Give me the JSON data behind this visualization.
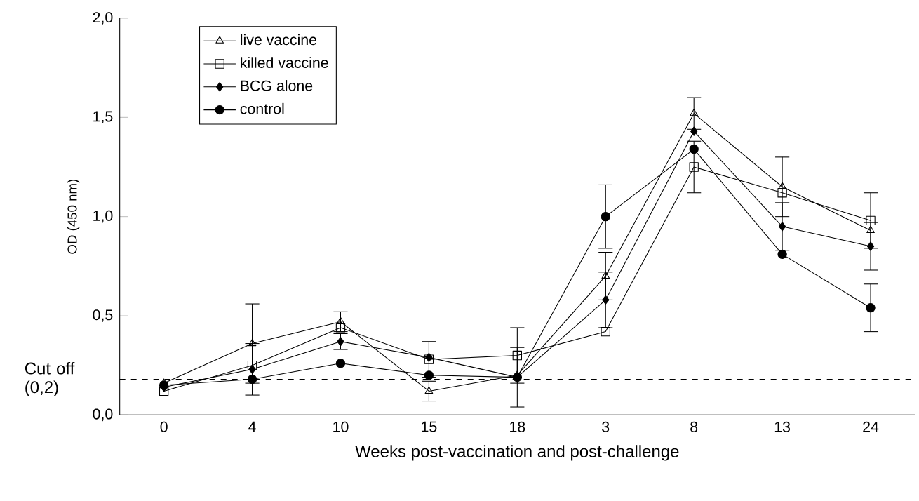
{
  "chart_data": {
    "type": "line",
    "xlabel": "Weeks post-vaccination and post-challenge",
    "ylabel": "OD (450 nm)",
    "categories": [
      "0",
      "4",
      "10",
      "15",
      "18",
      "3",
      "8",
      "13",
      "24"
    ],
    "series": [
      {
        "name": "live vaccine",
        "color": "#000000",
        "marker": "triangle",
        "values": [
          0.16,
          0.36,
          0.47,
          0.12,
          0.2,
          0.7,
          1.52,
          1.15,
          0.93
        ],
        "errors": [
          null,
          0.2,
          0.05,
          0.05,
          null,
          0.12,
          0.08,
          0.15,
          null
        ]
      },
      {
        "name": "killed vaccine",
        "color": "#000000",
        "marker": "square",
        "values": [
          0.12,
          0.25,
          0.44,
          0.28,
          0.3,
          0.42,
          1.25,
          1.12,
          0.98
        ],
        "errors": [
          null,
          null,
          null,
          0.09,
          0.14,
          null,
          0.13,
          null,
          0.14
        ]
      },
      {
        "name": "BCG alone",
        "color": "#000000",
        "marker": "diamond",
        "values": [
          0.14,
          0.23,
          0.37,
          0.29,
          0.19,
          0.58,
          1.43,
          0.95,
          0.85
        ],
        "errors": [
          null,
          0.13,
          0.04,
          null,
          null,
          0.14,
          null,
          0.12,
          0.12
        ]
      },
      {
        "name": "control",
        "color": "#000000",
        "marker": "circle",
        "values": [
          0.15,
          0.18,
          0.26,
          0.2,
          0.19,
          1.0,
          1.34,
          0.81,
          0.54
        ],
        "errors": [
          null,
          null,
          null,
          null,
          0.15,
          0.16,
          null,
          null,
          0.12
        ]
      }
    ],
    "ylim": [
      0,
      2
    ],
    "yticks": [
      {
        "value": 0,
        "label": "0,0"
      },
      {
        "value": 0.5,
        "label": "0,5"
      },
      {
        "value": 1,
        "label": "1,0"
      },
      {
        "value": 1.5,
        "label": "1,5"
      },
      {
        "value": 2,
        "label": "2,0"
      }
    ],
    "ref_lines": [
      {
        "axis": "y",
        "value": 0.18,
        "label": "Cut off\n(0,2)",
        "line_style": "dashed",
        "color": "#000000"
      }
    ],
    "legend": "top left",
    "grid": false,
    "line_style": "solid"
  }
}
